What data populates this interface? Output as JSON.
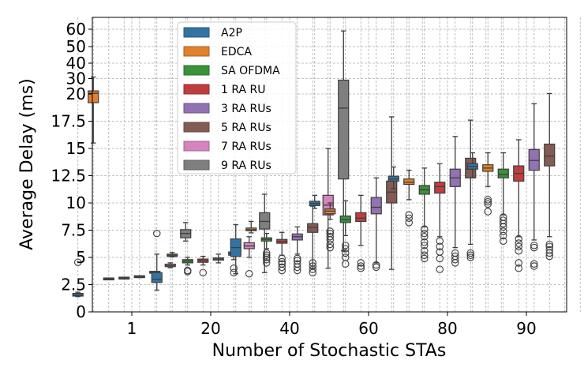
{
  "chart_data": {
    "type": "box",
    "xlabel": "Number of Stochastic STAs",
    "ylabel": "Average Delay (ms)",
    "categories": [
      "1",
      "20",
      "40",
      "60",
      "80",
      "90"
    ],
    "y_ticks": [
      {
        "value": 0,
        "label": "0"
      },
      {
        "value": 2.5,
        "label": "2.5"
      },
      {
        "value": 5,
        "label": "5"
      },
      {
        "value": 7.5,
        "label": "7.5"
      },
      {
        "value": 10,
        "label": "10"
      },
      {
        "value": 12.5,
        "label": "12.5"
      },
      {
        "value": 15,
        "label": "15"
      },
      {
        "value": 17.5,
        "label": "17.5"
      },
      {
        "value": 20,
        "label": "20"
      },
      {
        "value": 30,
        "label": "30"
      },
      {
        "value": 40,
        "label": "40"
      },
      {
        "value": 50,
        "label": "50"
      },
      {
        "value": 60,
        "label": "60"
      }
    ],
    "y_scale_note": "piecewise: linear 0-20, compressed 20-60",
    "grid": true,
    "legend_position": "upper-left",
    "series": [
      {
        "name": "A2P",
        "color": "#3274a1"
      },
      {
        "name": "EDCA",
        "color": "#e1812c"
      },
      {
        "name": "SA OFDMA",
        "color": "#3a923a"
      },
      {
        "name": "1 RA RU",
        "color": "#c03d3e"
      },
      {
        "name": "3 RA RUs",
        "color": "#9372b2"
      },
      {
        "name": "5 RA RUs",
        "color": "#845b53"
      },
      {
        "name": "7 RA RUs",
        "color": "#d684bd"
      },
      {
        "name": "9 RA RUs",
        "color": "#7f7f7f"
      }
    ],
    "boxes": [
      {
        "category": "1",
        "series": "A2P",
        "whisker_low": 1.4,
        "q1": 1.45,
        "median": 1.55,
        "q3": 1.7,
        "whisker_high": 1.8,
        "outliers": [
          4.55
        ]
      },
      {
        "category": "1",
        "series": "EDCA",
        "whisker_low": 15.5,
        "q1": 19.2,
        "median": 20.4,
        "q3": 22,
        "whisker_high": 31,
        "outliers": []
      },
      {
        "category": "1",
        "series": "SA OFDMA",
        "whisker_low": 2.95,
        "q1": 3.0,
        "median": 3.02,
        "q3": 3.05,
        "whisker_high": 3.1,
        "outliers": []
      },
      {
        "category": "1",
        "series": "1 RA RU",
        "whisker_low": 3.05,
        "q1": 3.08,
        "median": 3.1,
        "q3": 3.12,
        "whisker_high": 3.15,
        "outliers": []
      },
      {
        "category": "1",
        "series": "3 RA RUs",
        "whisker_low": 3.15,
        "q1": 3.2,
        "median": 3.22,
        "q3": 3.27,
        "whisker_high": 3.3,
        "outliers": []
      },
      {
        "category": "1",
        "series": "5 RA RUs",
        "whisker_low": 3.55,
        "q1": 3.6,
        "median": 3.62,
        "q3": 3.67,
        "whisker_high": 3.7,
        "outliers": []
      },
      {
        "category": "1",
        "series": "7 RA RUs",
        "whisker_low": 4.05,
        "q1": 4.15,
        "median": 4.25,
        "q3": 4.38,
        "whisker_high": 4.5,
        "outliers": []
      },
      {
        "category": "1",
        "series": "9 RA RUs",
        "whisker_low": 6.5,
        "q1": 6.8,
        "median": 7.2,
        "q3": 7.55,
        "whisker_high": 8.2,
        "outliers": []
      },
      {
        "category": "20",
        "series": "A2P",
        "whisker_low": 2.0,
        "q1": 2.7,
        "median": 3.0,
        "q3": 3.6,
        "whisker_high": 5.3,
        "outliers": [
          7.2
        ]
      },
      {
        "category": "20",
        "series": "EDCA",
        "whisker_low": 5.05,
        "q1": 5.1,
        "median": 5.2,
        "q3": 5.3,
        "whisker_high": 5.45,
        "outliers": []
      },
      {
        "category": "20",
        "series": "SA OFDMA",
        "whisker_low": 4.3,
        "q1": 4.5,
        "median": 4.65,
        "q3": 4.8,
        "whisker_high": 5.0,
        "outliers": [
          3.7,
          3.8
        ]
      },
      {
        "category": "20",
        "series": "1 RA RU",
        "whisker_low": 4.3,
        "q1": 4.55,
        "median": 4.7,
        "q3": 4.85,
        "whisker_high": 5.1,
        "outliers": [
          3.6
        ]
      },
      {
        "category": "20",
        "series": "3 RA RUs",
        "whisker_low": 4.5,
        "q1": 4.75,
        "median": 4.85,
        "q3": 4.95,
        "whisker_high": 5.3,
        "outliers": []
      },
      {
        "category": "20",
        "series": "5 RA RUs",
        "whisker_low": 4.8,
        "q1": 5.2,
        "median": 5.35,
        "q3": 5.5,
        "whisker_high": 5.8,
        "outliers": [
          3.6,
          4.0
        ]
      },
      {
        "category": "20",
        "series": "7 RA RUs",
        "whisker_low": 5.0,
        "q1": 5.8,
        "median": 6.05,
        "q3": 6.35,
        "whisker_high": 6.9,
        "outliers": [
          3.5
        ]
      },
      {
        "category": "20",
        "series": "9 RA RUs",
        "whisker_low": 3.6,
        "q1": 7.6,
        "median": 8.3,
        "q3": 9.1,
        "whisker_high": 10.8,
        "outliers": []
      },
      {
        "category": "40",
        "series": "A2P",
        "whisker_low": 3.5,
        "q1": 5.1,
        "median": 5.9,
        "q3": 6.7,
        "whisker_high": 8.0,
        "outliers": []
      },
      {
        "category": "40",
        "series": "EDCA",
        "whisker_low": 7.25,
        "q1": 7.45,
        "median": 7.55,
        "q3": 7.7,
        "whisker_high": 8.3,
        "outliers": []
      },
      {
        "category": "40",
        "series": "SA OFDMA",
        "whisker_low": 5.8,
        "q1": 6.5,
        "median": 6.65,
        "q3": 6.8,
        "whisker_high": 7.2,
        "outliers": [
          4.5,
          4.8,
          5.0,
          5.2,
          5.4
        ]
      },
      {
        "category": "40",
        "series": "1 RA RU",
        "whisker_low": 5.2,
        "q1": 6.3,
        "median": 6.45,
        "q3": 6.65,
        "whisker_high": 7.3,
        "outliers": [
          3.8,
          4.1,
          4.4,
          4.6,
          4.9
        ]
      },
      {
        "category": "40",
        "series": "3 RA RUs",
        "whisker_low": 5.3,
        "q1": 6.6,
        "median": 6.9,
        "q3": 7.15,
        "whisker_high": 7.8,
        "outliers": [
          3.8,
          4.1,
          4.4,
          4.7,
          4.9
        ]
      },
      {
        "category": "40",
        "series": "5 RA RUs",
        "whisker_low": 4.0,
        "q1": 7.3,
        "median": 7.75,
        "q3": 8.1,
        "whisker_high": 9.7,
        "outliers": [
          3.6,
          3.9,
          4.2,
          4.5
        ]
      },
      {
        "category": "40",
        "series": "7 RA RUs",
        "whisker_low": 4.0,
        "q1": 8.9,
        "median": 9.8,
        "q3": 10.7,
        "whisker_high": 15.0,
        "outliers": []
      },
      {
        "category": "40",
        "series": "9 RA RUs",
        "whisker_low": 5.6,
        "q1": 12.2,
        "median": 18.7,
        "q3": 29.0,
        "whisker_high": 59.0,
        "outliers": []
      },
      {
        "category": "60",
        "series": "A2P",
        "whisker_low": 9.5,
        "q1": 9.75,
        "median": 9.95,
        "q3": 10.15,
        "whisker_high": 10.7,
        "outliers": []
      },
      {
        "category": "60",
        "series": "EDCA",
        "whisker_low": 8.5,
        "q1": 9.0,
        "median": 9.25,
        "q3": 9.45,
        "whisker_high": 10.0,
        "outliers": [
          5.9,
          6.2,
          6.6,
          6.9,
          7.2,
          7.4
        ]
      },
      {
        "category": "60",
        "series": "SA OFDMA",
        "whisker_low": 7.0,
        "q1": 8.2,
        "median": 8.45,
        "q3": 8.8,
        "whisker_high": 10.2,
        "outliers": [
          4.4,
          5.0,
          5.4,
          5.8,
          6.1
        ]
      },
      {
        "category": "60",
        "series": "1 RA RU",
        "whisker_low": 6.1,
        "q1": 8.3,
        "median": 8.6,
        "q3": 9.1,
        "whisker_high": 10.7,
        "outliers": [
          4.0,
          4.2,
          4.5
        ]
      },
      {
        "category": "60",
        "series": "3 RA RUs",
        "whisker_low": 4.5,
        "q1": 9.0,
        "median": 9.6,
        "q3": 10.5,
        "whisker_high": 12.3,
        "outliers": [
          4.1,
          4.3
        ]
      },
      {
        "category": "60",
        "series": "5 RA RUs",
        "whisker_low": 3.9,
        "q1": 10.0,
        "median": 11.0,
        "q3": 12.0,
        "whisker_high": 17.9,
        "outliers": []
      },
      {
        "category": "80",
        "series": "A2P",
        "whisker_low": 11.3,
        "q1": 12.0,
        "median": 12.2,
        "q3": 12.45,
        "whisker_high": 13.3,
        "outliers": []
      },
      {
        "category": "80",
        "series": "EDCA",
        "whisker_low": 10.3,
        "q1": 11.7,
        "median": 11.9,
        "q3": 12.2,
        "whisker_high": 13.0,
        "outliers": [
          8.2,
          8.6,
          8.9
        ]
      },
      {
        "category": "80",
        "series": "SA OFDMA",
        "whisker_low": 7.8,
        "q1": 10.8,
        "median": 11.2,
        "q3": 11.6,
        "whisker_high": 13.2,
        "outliers": [
          4.9,
          5.2,
          5.6,
          6.1,
          6.4,
          6.9,
          7.2,
          7.6
        ]
      },
      {
        "category": "80",
        "series": "1 RA RU",
        "whisker_low": 6.9,
        "q1": 10.9,
        "median": 11.5,
        "q3": 11.9,
        "whisker_high": 13.6,
        "outliers": [
          3.9,
          4.9,
          5.5,
          6.0,
          6.5
        ]
      },
      {
        "category": "80",
        "series": "3 RA RUs",
        "whisker_low": 5.9,
        "q1": 11.5,
        "median": 12.3,
        "q3": 13.1,
        "whisker_high": 16.1,
        "outliers": [
          4.5,
          4.8,
          5.1,
          5.4
        ]
      },
      {
        "category": "80",
        "series": "5 RA RUs",
        "whisker_low": 6.2,
        "q1": 12.3,
        "median": 13.1,
        "q3": 14.1,
        "whisker_high": 17.6,
        "outliers": [
          5.0,
          5.2,
          5.4
        ]
      },
      {
        "category": "90",
        "series": "A2P",
        "whisker_low": 12.3,
        "q1": 13.1,
        "median": 13.35,
        "q3": 13.6,
        "whisker_high": 14.6,
        "outliers": []
      },
      {
        "category": "90",
        "series": "EDCA",
        "whisker_low": 11.5,
        "q1": 12.9,
        "median": 13.2,
        "q3": 13.5,
        "whisker_high": 14.6,
        "outliers": [
          9.2,
          9.9,
          10.1,
          10.3
        ]
      },
      {
        "category": "90",
        "series": "SA OFDMA",
        "whisker_low": 8.9,
        "q1": 12.3,
        "median": 12.6,
        "q3": 13.1,
        "whisker_high": 14.6,
        "outliers": [
          6.5,
          7.0,
          7.4,
          7.8,
          8.1,
          8.4,
          8.7
        ]
      },
      {
        "category": "90",
        "series": "1 RA RU",
        "whisker_low": 6.9,
        "q1": 12.0,
        "median": 12.7,
        "q3": 13.4,
        "whisker_high": 15.8,
        "outliers": [
          4.0,
          4.5,
          5.6,
          6.0,
          6.3,
          6.7
        ]
      },
      {
        "category": "90",
        "series": "3 RA RUs",
        "whisker_low": 6.6,
        "q1": 13.0,
        "median": 13.9,
        "q3": 14.9,
        "whisker_high": 19.1,
        "outliers": [
          4.2,
          4.4,
          5.9,
          6.1
        ]
      },
      {
        "category": "90",
        "series": "5 RA RUs",
        "whisker_low": 6.9,
        "q1": 13.4,
        "median": 14.3,
        "q3": 15.4,
        "whisker_high": 20.3,
        "outliers": [
          5.1,
          5.4,
          5.7,
          6.0,
          6.2
        ]
      }
    ]
  }
}
